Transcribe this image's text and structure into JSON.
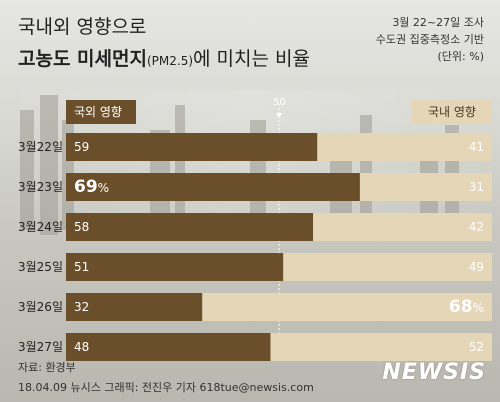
{
  "header": {
    "title_line1": "국내외 영향으로",
    "title_strong": "고농도 미세먼지",
    "title_pm": "(PM2.5)",
    "title_rest": "에 미치는 비율",
    "note_lines": [
      "3월 22~27일 조사",
      "수도권 집중측정소 기반",
      "(단위: %)"
    ]
  },
  "chart_data": {
    "type": "bar",
    "stacked": true,
    "orientation": "horizontal",
    "categories": [
      "3월22일",
      "3월23일",
      "3월24일",
      "3월25일",
      "3월26일",
      "3월27일"
    ],
    "series": [
      {
        "name": "국외 영향",
        "values": [
          59,
          69,
          58,
          51,
          32,
          48
        ],
        "color": "#6b4f2a"
      },
      {
        "name": "국내 영향",
        "values": [
          41,
          31,
          42,
          49,
          68,
          52
        ],
        "color": "#e4d6b7"
      }
    ],
    "reference_line": 50,
    "xlim": [
      0,
      100
    ],
    "highlight": {
      "0": [
        1
      ],
      "1": [
        4
      ]
    },
    "percent_suffix": "%"
  },
  "footer": {
    "source": "자료: 환경부",
    "credit": "18.04.09 뉴시스 그래픽: 전진우 기자 618tue@newsis.com",
    "logo": "NEWSIS"
  }
}
